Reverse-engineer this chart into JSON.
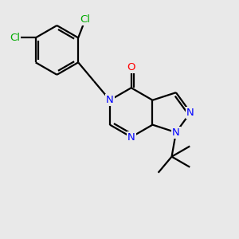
{
  "bg_color": "#e9e9e9",
  "atom_colors": {
    "C": "#000000",
    "N": "#0000ff",
    "O": "#ff0000",
    "Cl": "#00aa00"
  },
  "bond_color": "#000000",
  "bond_width": 1.6
}
